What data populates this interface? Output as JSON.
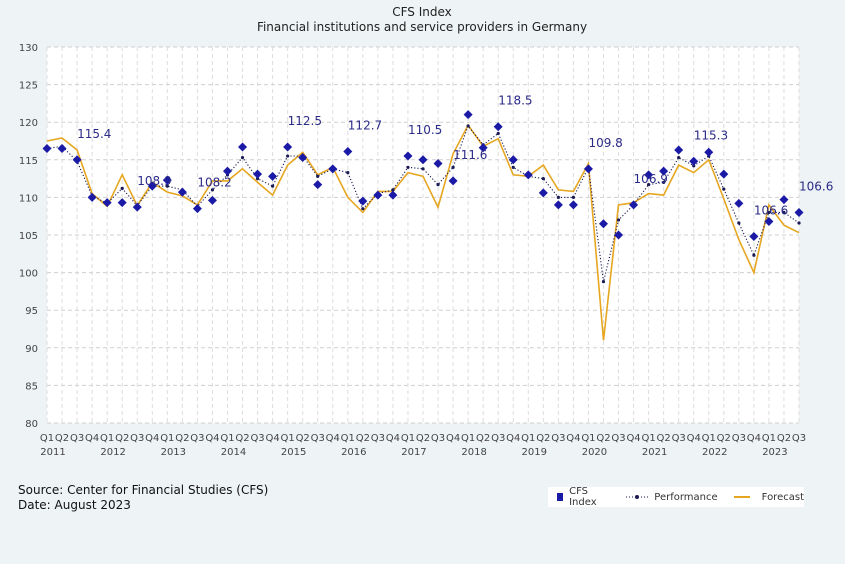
{
  "chart_data": {
    "type": "line",
    "title": "CFS Index",
    "subtitle": "Financial institutions and service providers in Germany",
    "ylim": [
      80,
      130
    ],
    "yticks": [
      80,
      85,
      90,
      95,
      100,
      105,
      110,
      115,
      120,
      125,
      130
    ],
    "grid": true,
    "legend_position": "bottom-right",
    "quarter_labels": [
      "Q1",
      "Q2",
      "Q3",
      "Q4",
      "Q1",
      "Q2",
      "Q3",
      "Q4",
      "Q1",
      "Q2",
      "Q3",
      "Q4",
      "Q1",
      "Q2",
      "Q3",
      "Q4",
      "Q1",
      "Q2",
      "Q3",
      "Q4",
      "Q1",
      "Q2",
      "Q3",
      "Q4",
      "Q1",
      "Q2",
      "Q3",
      "Q4",
      "Q1",
      "Q2",
      "Q3",
      "Q4",
      "Q1",
      "Q2",
      "Q3",
      "Q4",
      "Q1",
      "Q2",
      "Q3",
      "Q4",
      "Q1",
      "Q2",
      "Q3",
      "Q4",
      "Q1",
      "Q2",
      "Q3",
      "Q4",
      "Q1",
      "Q2",
      "Q3"
    ],
    "years": [
      "2011",
      "2012",
      "2013",
      "2014",
      "2015",
      "2016",
      "2017",
      "2018",
      "2019",
      "2020",
      "2021",
      "2022",
      "2023"
    ],
    "series": [
      {
        "name": "CFS Index",
        "color": "#1a1aa6",
        "values": [
          116.5,
          116.5,
          115,
          110,
          109.3,
          109.3,
          108.7,
          111.5,
          112.3,
          110.7,
          108.5,
          109.6,
          113.5,
          116.7,
          113.1,
          112.8,
          116.7,
          115.3,
          111.7,
          113.8,
          116.1,
          109.5,
          110.3,
          110.3,
          115.5,
          115,
          114.5,
          112.2,
          121,
          116.6,
          119.4,
          115,
          113,
          110.6,
          109,
          109,
          113.8,
          106.5,
          105,
          109,
          113,
          113.5,
          116.3,
          114.8,
          116,
          113.1,
          109.2,
          104.8,
          106.8,
          109.7,
          108
        ]
      },
      {
        "name": "Performance",
        "color": "#1a1a55",
        "values": [
          116.5,
          116.8,
          114.8,
          110.2,
          109.2,
          111.2,
          108.9,
          111.5,
          111.5,
          111,
          108.8,
          111,
          113,
          115.3,
          112.5,
          111.5,
          115.5,
          115.5,
          112.8,
          113.8,
          113.3,
          108.5,
          110.5,
          111,
          114,
          113.8,
          111.7,
          114,
          119.5,
          117,
          118.5,
          114,
          112.8,
          112.5,
          110,
          110,
          114,
          98.8,
          107,
          109,
          111.7,
          112,
          115.3,
          114.2,
          115.5,
          111.1,
          106.6,
          102.3,
          108,
          108,
          106.6
        ]
      },
      {
        "name": "Forecast",
        "color": "#e6a620",
        "values": [
          117.5,
          117.9,
          116.3,
          110.5,
          108.8,
          113,
          108.9,
          112,
          110.7,
          110.2,
          109,
          112.2,
          112.2,
          113.8,
          112,
          110.3,
          114.3,
          116,
          113,
          114,
          110,
          108,
          110.8,
          110.8,
          113.3,
          112.8,
          108.7,
          115.8,
          119.6,
          116.8,
          117.8,
          113,
          112.8,
          114.3,
          111,
          110.8,
          114.5,
          91,
          109,
          109.3,
          110.5,
          110.3,
          114.3,
          113.3,
          115,
          109.8,
          104.4,
          100,
          109,
          106.3,
          105.3
        ]
      }
    ],
    "data_labels": [
      {
        "index": 2,
        "series": "CFS Index",
        "text": "115.4"
      },
      {
        "index": 6,
        "series": "CFS Index",
        "text": "108.9"
      },
      {
        "index": 10,
        "series": "CFS Index",
        "text": "108.2"
      },
      {
        "index": 16,
        "series": "CFS Index",
        "text": "112.5"
      },
      {
        "index": 20,
        "series": "CFS Index",
        "text": "112.7"
      },
      {
        "index": 24,
        "series": "CFS Index",
        "text": "110.5"
      },
      {
        "index": 27,
        "series": "CFS Index",
        "text": "111.6"
      },
      {
        "index": 30,
        "series": "CFS Index",
        "text": "118.5"
      },
      {
        "index": 36,
        "series": "CFS Index",
        "text": "109.8"
      },
      {
        "index": 39,
        "series": "CFS Index",
        "text": "106.9"
      },
      {
        "index": 43,
        "series": "CFS Index",
        "text": "115.3"
      },
      {
        "index": 47,
        "series": "CFS Index",
        "text": "106.6"
      },
      {
        "index": 50,
        "series": "CFS Index",
        "text": "106.6"
      }
    ]
  },
  "footer": {
    "source": "Source: Center for Financial Studies (CFS)",
    "date": "Date: August 2023"
  }
}
